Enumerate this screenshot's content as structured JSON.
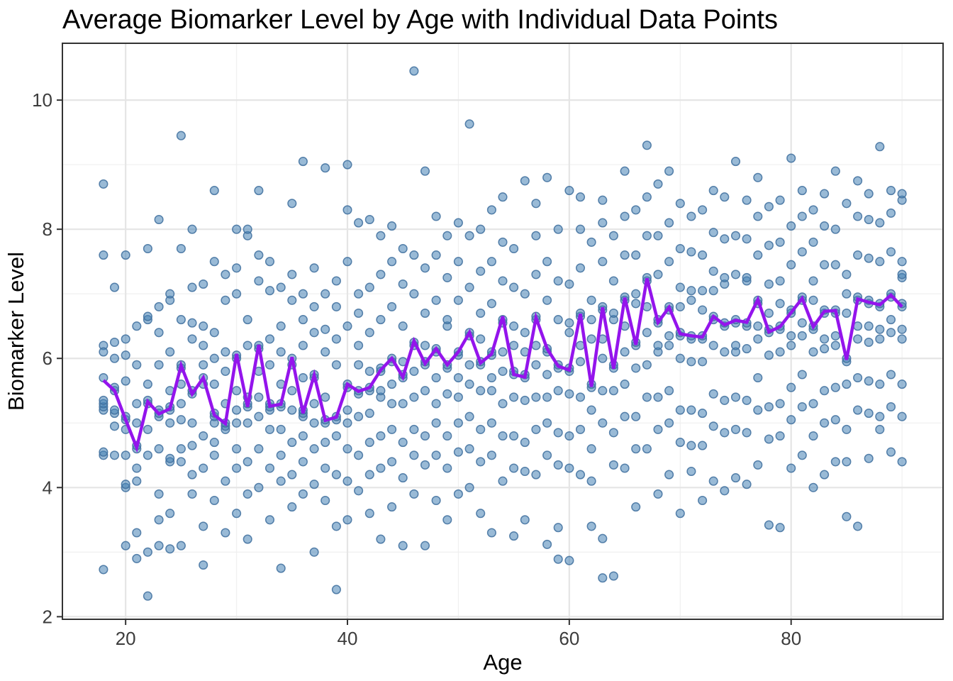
{
  "chart_data": {
    "type": "scatter",
    "title": "Average Biomarker Level by Age with Individual Data Points",
    "xlabel": "Age",
    "ylabel": "Biomarker Level",
    "xlim": [
      14.3,
      93.7
    ],
    "ylim": [
      1.96,
      10.88
    ],
    "x_major_ticks": [
      20,
      40,
      60,
      80
    ],
    "x_minor_gridlines": [
      30,
      50,
      70,
      90
    ],
    "y_major_ticks": [
      2,
      4,
      6,
      8,
      10
    ],
    "y_minor_gridlines": [
      3,
      5,
      7,
      9
    ],
    "grid": true,
    "legend_position": "none",
    "colors": {
      "point_fill": "#4682B4",
      "point_fill_opacity": 0.55,
      "point_stroke": "#3E6E9E",
      "point_stroke_opacity": 0.85,
      "mean_line": "#9414EC",
      "grid_major": "#E5E5E5",
      "grid_minor": "#F0F0F0",
      "panel_border": "#333333",
      "tick_mark": "#333333",
      "tick_label": "#3C3C3C",
      "background": "#FFFFFF"
    },
    "mean_line": {
      "name": "Average Biomarker Level",
      "x": [
        18,
        19,
        20,
        21,
        22,
        23,
        24,
        25,
        26,
        27,
        28,
        29,
        30,
        31,
        32,
        33,
        34,
        35,
        36,
        37,
        38,
        39,
        40,
        41,
        42,
        43,
        44,
        45,
        46,
        47,
        48,
        49,
        50,
        51,
        52,
        53,
        54,
        55,
        56,
        57,
        58,
        59,
        60,
        61,
        62,
        63,
        64,
        65,
        66,
        67,
        68,
        69,
        70,
        71,
        72,
        73,
        74,
        75,
        76,
        77,
        78,
        79,
        80,
        81,
        82,
        83,
        84,
        85,
        86,
        87,
        88,
        89,
        90
      ],
      "y": [
        5.66,
        5.5,
        5.05,
        4.62,
        5.33,
        5.14,
        5.22,
        5.89,
        5.45,
        5.7,
        5.12,
        4.99,
        6.07,
        5.25,
        6.21,
        5.26,
        5.29,
        6.02,
        5.15,
        5.74,
        5.04,
        5.09,
        5.6,
        5.49,
        5.55,
        5.82,
        6.0,
        5.71,
        6.27,
        5.92,
        6.15,
        5.9,
        6.1,
        6.4,
        5.93,
        6.07,
        6.65,
        5.75,
        5.71,
        6.63,
        6.15,
        5.88,
        5.82,
        6.69,
        5.56,
        6.79,
        5.84,
        6.94,
        6.21,
        7.24,
        6.56,
        6.79,
        6.38,
        6.35,
        6.33,
        6.65,
        6.52,
        6.59,
        6.56,
        6.91,
        6.41,
        6.49,
        6.71,
        6.93,
        6.49,
        6.73,
        6.74,
        5.98,
        6.92,
        6.87,
        6.83,
        6.98,
        6.8
      ]
    },
    "points": {
      "18": [
        2.73,
        4.5,
        4.55,
        5.2,
        5.25,
        5.3,
        5.35,
        5.7,
        6.2,
        6.1,
        7.6,
        8.7
      ],
      "19": [
        4.5,
        4.95,
        5.15,
        5.2,
        5.5,
        5.55,
        6.0,
        6.25,
        7.1
      ],
      "20": [
        3.1,
        4.0,
        4.05,
        4.5,
        4.9,
        5.05,
        5.1,
        5.65,
        6.05,
        6.3,
        7.6
      ],
      "21": [
        2.9,
        3.3,
        4.1,
        4.3,
        4.6,
        4.65,
        5.0,
        5.3,
        5.9,
        6.5
      ],
      "22": [
        2.32,
        3.0,
        4.5,
        4.9,
        5.3,
        5.35,
        5.6,
        6.6,
        6.65,
        7.7
      ],
      "23": [
        3.1,
        3.5,
        3.9,
        4.6,
        5.1,
        5.15,
        5.2,
        5.9,
        6.4,
        6.8,
        8.15
      ],
      "24": [
        3.05,
        3.6,
        4.4,
        4.45,
        5.0,
        5.2,
        5.25,
        5.5,
        6.1,
        6.9,
        7.0
      ],
      "25": [
        3.1,
        4.4,
        4.6,
        5.05,
        5.3,
        5.6,
        5.85,
        5.9,
        6.6,
        7.7,
        9.45
      ],
      "26": [
        3.9,
        4.2,
        4.65,
        5.0,
        5.45,
        5.5,
        6.3,
        6.55,
        7.1,
        8.0
      ],
      "27": [
        2.8,
        3.4,
        4.3,
        4.8,
        5.6,
        5.7,
        5.9,
        6.2,
        6.5,
        7.15
      ],
      "28": [
        3.8,
        4.5,
        4.7,
        5.0,
        5.1,
        5.15,
        5.6,
        6.0,
        6.4,
        7.5,
        8.6
      ],
      "29": [
        3.3,
        4.1,
        4.9,
        4.95,
        5.0,
        5.3,
        5.8,
        6.1,
        6.9,
        7.3
      ],
      "30": [
        3.6,
        4.3,
        4.6,
        5.0,
        5.2,
        5.5,
        6.0,
        6.05,
        7.0,
        7.4,
        8.0
      ],
      "31": [
        3.2,
        3.9,
        4.4,
        5.0,
        5.25,
        5.3,
        5.4,
        6.2,
        6.6,
        7.9,
        8.0
      ],
      "32": [
        4.0,
        4.6,
        5.1,
        5.4,
        5.8,
        6.15,
        6.2,
        7.2,
        7.6,
        8.6
      ],
      "33": [
        3.5,
        4.3,
        4.9,
        5.2,
        5.25,
        5.3,
        5.9,
        6.3,
        7.05,
        7.5
      ],
      "34": [
        2.75,
        4.1,
        4.5,
        4.9,
        5.25,
        5.3,
        5.6,
        6.1,
        6.5,
        7.1
      ],
      "35": [
        3.7,
        4.2,
        4.7,
        5.2,
        5.5,
        5.9,
        6.0,
        6.9,
        7.3,
        8.4
      ],
      "36": [
        3.9,
        4.4,
        4.8,
        5.1,
        5.15,
        5.2,
        5.7,
        6.2,
        6.6,
        7.0,
        9.05
      ],
      "37": [
        3.0,
        4.05,
        4.6,
        5.0,
        5.3,
        5.7,
        5.75,
        6.4,
        6.8,
        7.4
      ],
      "38": [
        3.8,
        4.3,
        4.7,
        5.0,
        5.05,
        5.4,
        6.1,
        6.45,
        7.0,
        8.95
      ],
      "39": [
        2.42,
        3.4,
        4.2,
        4.8,
        5.05,
        5.1,
        5.9,
        6.3,
        6.8,
        7.2
      ],
      "40": [
        3.5,
        4.1,
        4.6,
        5.0,
        5.2,
        5.55,
        5.6,
        6.5,
        7.5,
        8.3,
        9.0
      ],
      "41": [
        3.95,
        4.5,
        5.1,
        5.45,
        5.5,
        5.9,
        6.2,
        6.7,
        7.0,
        8.1
      ],
      "42": [
        3.6,
        4.2,
        4.7,
        5.15,
        5.5,
        5.55,
        5.8,
        6.4,
        7.1,
        8.15
      ],
      "43": [
        3.2,
        4.3,
        4.8,
        5.4,
        5.5,
        5.8,
        5.85,
        6.6,
        7.3,
        7.9
      ],
      "44": [
        3.7,
        4.4,
        4.9,
        5.3,
        5.6,
        5.95,
        6.0,
        6.8,
        7.5,
        8.05
      ],
      "45": [
        3.1,
        4.15,
        4.7,
        5.3,
        5.7,
        5.75,
        5.95,
        6.5,
        7.15,
        7.7
      ],
      "46": [
        3.9,
        4.5,
        4.9,
        5.4,
        5.8,
        6.2,
        6.25,
        7.0,
        7.6,
        10.45
      ],
      "47": [
        3.1,
        4.35,
        4.8,
        5.5,
        5.9,
        5.95,
        6.2,
        6.7,
        7.4,
        8.9
      ],
      "48": [
        3.8,
        4.5,
        5.0,
        5.3,
        5.7,
        6.1,
        6.15,
        6.9,
        7.6,
        8.2
      ],
      "49": [
        3.5,
        4.3,
        4.8,
        5.45,
        5.85,
        5.9,
        6.5,
        6.6,
        7.25,
        7.9
      ],
      "50": [
        3.9,
        4.55,
        5.0,
        5.4,
        5.7,
        6.05,
        6.1,
        6.9,
        7.5,
        8.1
      ],
      "51": [
        4.0,
        4.6,
        5.1,
        5.6,
        5.9,
        6.35,
        6.4,
        7.1,
        7.9,
        9.63
      ],
      "52": [
        3.6,
        4.4,
        4.9,
        5.5,
        5.9,
        5.95,
        6.3,
        6.7,
        7.35,
        8.0
      ],
      "53": [
        3.3,
        4.5,
        5.0,
        5.5,
        5.7,
        6.05,
        6.1,
        6.85,
        7.5,
        8.3
      ],
      "54": [
        4.1,
        4.8,
        5.3,
        5.8,
        6.1,
        6.55,
        6.6,
        7.2,
        7.8,
        8.5
      ],
      "55": [
        3.25,
        4.3,
        4.8,
        5.4,
        5.75,
        5.8,
        6.2,
        6.5,
        7.1,
        7.7
      ],
      "56": [
        3.5,
        4.25,
        4.7,
        5.35,
        5.7,
        5.75,
        6.1,
        6.4,
        7.0,
        8.75
      ],
      "57": [
        4.2,
        4.9,
        5.4,
        5.9,
        6.2,
        6.6,
        6.65,
        7.3,
        7.9,
        8.4
      ],
      "58": [
        3.12,
        4.5,
        5.0,
        5.4,
        5.75,
        6.1,
        6.15,
        6.9,
        7.5,
        8.8
      ],
      "59": [
        2.89,
        3.38,
        4.35,
        4.85,
        5.5,
        5.85,
        5.9,
        6.6,
        7.2,
        8.0
      ],
      "60": [
        2.87,
        4.3,
        4.8,
        5.45,
        5.8,
        5.85,
        6.4,
        6.55,
        7.15,
        8.6
      ],
      "61": [
        4.2,
        4.9,
        5.4,
        5.95,
        6.2,
        6.65,
        6.7,
        7.4,
        8.0,
        8.5
      ],
      "62": [
        3.4,
        4.1,
        4.6,
        5.2,
        5.55,
        5.6,
        6.3,
        6.6,
        6.9,
        7.8
      ],
      "63": [
        2.6,
        3.21,
        5.0,
        5.5,
        6.0,
        6.3,
        6.75,
        6.8,
        7.5,
        8.1,
        8.45
      ],
      "64": [
        2.63,
        4.35,
        4.85,
        5.5,
        5.85,
        5.9,
        6.6,
        6.7,
        7.2,
        7.9
      ],
      "65": [
        4.3,
        5.1,
        5.6,
        6.1,
        6.5,
        6.9,
        6.95,
        7.6,
        8.2,
        8.9
      ],
      "66": [
        3.7,
        4.6,
        5.1,
        5.85,
        6.2,
        6.25,
        6.85,
        7.0,
        7.6,
        8.3
      ],
      "67": [
        4.6,
        5.4,
        5.9,
        6.4,
        6.8,
        7.2,
        7.25,
        7.9,
        8.5,
        9.3
      ],
      "68": [
        3.9,
        4.9,
        5.4,
        6.1,
        6.2,
        6.55,
        6.6,
        7.3,
        7.9,
        8.7
      ],
      "69": [
        4.2,
        5.0,
        5.5,
        6.2,
        6.35,
        6.75,
        6.8,
        7.5,
        8.1,
        8.9
      ],
      "70": [
        3.6,
        4.7,
        5.2,
        6.0,
        6.35,
        6.4,
        6.8,
        7.1,
        7.7,
        8.4
      ],
      "71": [
        4.25,
        4.65,
        5.2,
        5.95,
        6.3,
        6.35,
        6.9,
        7.05,
        7.65,
        8.2
      ],
      "72": [
        3.8,
        4.65,
        5.15,
        5.95,
        6.3,
        6.35,
        6.75,
        7.05,
        7.6,
        8.3
      ],
      "73": [
        4.1,
        4.95,
        5.45,
        6.2,
        6.6,
        6.65,
        7.05,
        7.35,
        7.95,
        8.6
      ],
      "74": [
        3.95,
        4.85,
        5.35,
        6.1,
        6.5,
        6.55,
        7.15,
        7.25,
        7.85,
        8.5
      ],
      "75": [
        4.15,
        4.9,
        5.4,
        6.1,
        6.2,
        6.55,
        6.6,
        7.3,
        7.9,
        9.05
      ],
      "76": [
        4.05,
        4.85,
        5.35,
        6.15,
        6.5,
        6.55,
        7.2,
        7.25,
        7.85,
        8.45
      ],
      "77": [
        4.35,
        5.2,
        5.7,
        6.3,
        6.5,
        6.85,
        6.9,
        7.6,
        8.2,
        8.8
      ],
      "78": [
        3.42,
        4.75,
        5.25,
        6.05,
        6.4,
        6.45,
        6.7,
        7.15,
        7.75,
        8.35
      ],
      "79": [
        3.38,
        4.8,
        5.3,
        6.1,
        6.45,
        6.5,
        6.85,
        7.2,
        7.8,
        8.45
      ],
      "80": [
        4.3,
        5.05,
        5.55,
        6.2,
        6.35,
        6.7,
        6.75,
        7.45,
        8.05,
        9.1
      ],
      "81": [
        4.5,
        5.25,
        5.75,
        6.35,
        6.55,
        6.9,
        6.95,
        7.65,
        8.2,
        8.6
      ],
      "82": [
        4.0,
        4.8,
        5.3,
        6.1,
        6.45,
        6.5,
        6.9,
        7.2,
        7.8,
        8.3
      ],
      "83": [
        4.2,
        5.0,
        5.5,
        6.15,
        6.3,
        6.7,
        6.75,
        7.45,
        8.05,
        8.55
      ],
      "84": [
        4.4,
        5.05,
        5.55,
        6.2,
        6.35,
        6.7,
        6.75,
        7.45,
        8.0,
        8.9
      ],
      "85": [
        3.55,
        4.4,
        4.9,
        5.6,
        5.95,
        6.0,
        6.7,
        7.0,
        7.3,
        8.4
      ],
      "86": [
        3.4,
        5.2,
        5.7,
        6.3,
        6.5,
        6.9,
        6.95,
        7.6,
        8.2,
        8.75
      ],
      "87": [
        4.45,
        5.15,
        5.65,
        6.25,
        6.5,
        6.85,
        6.9,
        7.55,
        8.15,
        8.55
      ],
      "88": [
        4.9,
        5.1,
        5.6,
        6.3,
        6.45,
        6.8,
        6.85,
        7.5,
        8.1,
        9.28
      ],
      "89": [
        4.55,
        5.25,
        5.75,
        6.4,
        6.6,
        6.95,
        7.0,
        7.65,
        8.25,
        8.6
      ],
      "90": [
        4.4,
        5.1,
        5.6,
        6.3,
        6.45,
        6.8,
        6.85,
        7.25,
        7.3,
        7.5,
        8.45,
        8.55
      ]
    }
  }
}
